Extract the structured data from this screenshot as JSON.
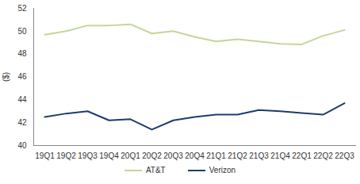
{
  "chart_data": {
    "type": "line",
    "y_label": "($)",
    "categories": [
      "19Q1",
      "19Q2",
      "19Q3",
      "19Q4",
      "20Q1",
      "20Q2",
      "20Q3",
      "20Q4",
      "21Q1",
      "21Q2",
      "21Q3",
      "21Q4",
      "22Q1",
      "22Q2",
      "22Q3"
    ],
    "series": [
      {
        "name": "AT&T",
        "color": "#c3d69b",
        "values": [
          49.7,
          50.0,
          50.5,
          50.5,
          50.6,
          49.8,
          50.0,
          49.5,
          49.1,
          49.3,
          49.1,
          48.9,
          48.85,
          49.6,
          50.1
        ]
      },
      {
        "name": "Verizon",
        "color": "#1f3c6e",
        "values": [
          42.5,
          42.8,
          43.0,
          42.2,
          42.3,
          41.4,
          42.2,
          42.5,
          42.7,
          42.7,
          43.1,
          43.0,
          42.85,
          42.7,
          43.7
        ]
      }
    ],
    "ylim": [
      40,
      52
    ],
    "yticks": [
      40,
      42,
      44,
      46,
      48,
      50,
      52
    ],
    "grid": false,
    "legend": "bottom"
  }
}
